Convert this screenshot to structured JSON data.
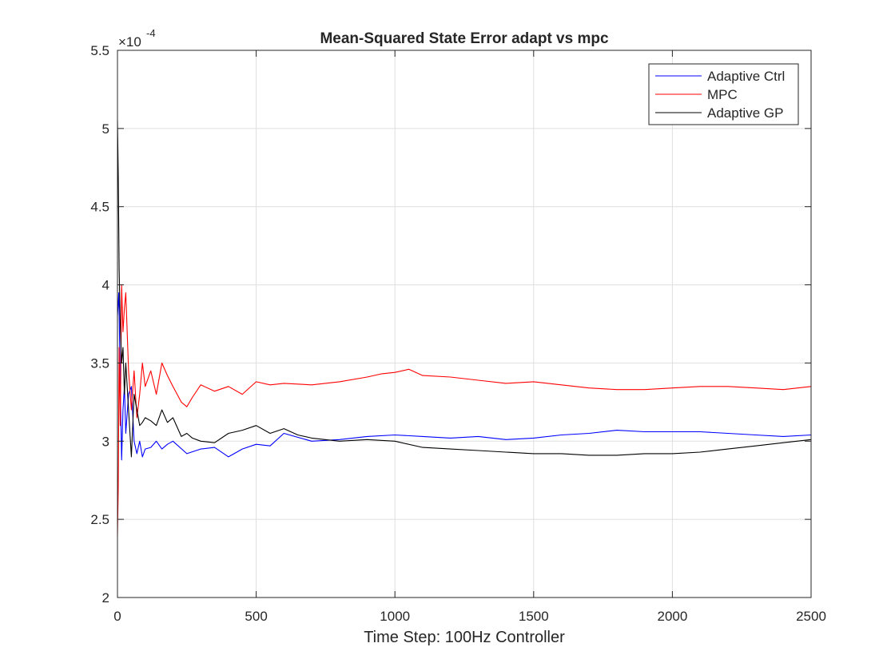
{
  "chart_data": {
    "type": "line",
    "title": "Mean-Squared State Error adapt vs mpc",
    "xlabel": "Time Step: 100Hz Controller",
    "ylabel": "",
    "xlim": [
      0,
      2500
    ],
    "ylim": [
      2.0,
      5.5
    ],
    "y_exponent_label": "×10",
    "y_exponent": "-4",
    "x_ticks": [
      0,
      500,
      1000,
      1500,
      2000,
      2500
    ],
    "x_tick_labels": [
      "0",
      "500",
      "1000",
      "1500",
      "2000",
      "2500"
    ],
    "y_ticks": [
      2.0,
      2.5,
      3.0,
      3.5,
      4.0,
      4.5,
      5.0,
      5.5
    ],
    "y_tick_labels": [
      "2",
      "2.5",
      "3",
      "3.5",
      "4",
      "4.5",
      "5",
      "5.5"
    ],
    "grid": true,
    "legend_position": "top-right",
    "series": [
      {
        "name": "Adaptive Ctrl",
        "color": "#0000ff",
        "x": [
          0,
          5,
          10,
          15,
          20,
          25,
          30,
          40,
          50,
          60,
          70,
          80,
          90,
          100,
          120,
          140,
          160,
          180,
          200,
          250,
          300,
          350,
          400,
          450,
          500,
          550,
          600,
          700,
          800,
          900,
          1000,
          1100,
          1200,
          1300,
          1400,
          1500,
          1600,
          1700,
          1800,
          1900,
          2000,
          2100,
          2200,
          2300,
          2400,
          2500
        ],
        "values": [
          3.8,
          3.95,
          3.35,
          2.88,
          3.2,
          3.35,
          3.05,
          3.3,
          3.35,
          3.0,
          2.92,
          3.0,
          2.9,
          2.95,
          2.96,
          3.0,
          2.95,
          2.98,
          3.0,
          2.92,
          2.95,
          2.96,
          2.9,
          2.95,
          2.98,
          2.97,
          3.05,
          3.0,
          3.01,
          3.03,
          3.04,
          3.03,
          3.02,
          3.03,
          3.01,
          3.02,
          3.04,
          3.05,
          3.07,
          3.06,
          3.06,
          3.06,
          3.05,
          3.04,
          3.03,
          3.04
        ]
      },
      {
        "name": "MPC",
        "color": "#ff0000",
        "x": [
          0,
          3,
          6,
          10,
          15,
          20,
          25,
          30,
          40,
          50,
          60,
          70,
          80,
          90,
          100,
          120,
          140,
          160,
          180,
          200,
          230,
          250,
          270,
          300,
          350,
          400,
          450,
          500,
          550,
          600,
          700,
          800,
          900,
          950,
          1000,
          1050,
          1100,
          1200,
          1300,
          1400,
          1500,
          1600,
          1700,
          1800,
          1900,
          2000,
          2100,
          2200,
          2300,
          2400,
          2500
        ],
        "values": [
          2.4,
          2.7,
          3.6,
          3.1,
          4.0,
          3.7,
          3.85,
          3.95,
          3.45,
          3.2,
          3.45,
          3.15,
          3.3,
          3.5,
          3.35,
          3.45,
          3.3,
          3.5,
          3.42,
          3.35,
          3.25,
          3.22,
          3.28,
          3.36,
          3.32,
          3.35,
          3.3,
          3.38,
          3.36,
          3.37,
          3.36,
          3.38,
          3.41,
          3.43,
          3.44,
          3.46,
          3.42,
          3.41,
          3.39,
          3.37,
          3.38,
          3.36,
          3.34,
          3.33,
          3.33,
          3.34,
          3.35,
          3.35,
          3.34,
          3.33,
          3.35
        ]
      },
      {
        "name": "Adaptive GP",
        "color": "#000000",
        "x": [
          0,
          3,
          6,
          10,
          15,
          20,
          25,
          30,
          40,
          50,
          60,
          70,
          80,
          90,
          100,
          120,
          140,
          160,
          180,
          200,
          230,
          250,
          270,
          300,
          350,
          400,
          450,
          500,
          550,
          600,
          650,
          700,
          800,
          900,
          1000,
          1100,
          1200,
          1300,
          1400,
          1500,
          1600,
          1700,
          1800,
          1900,
          2000,
          2100,
          2200,
          2300,
          2400,
          2500
        ],
        "values": [
          5.05,
          4.7,
          4.1,
          3.75,
          3.5,
          3.6,
          3.3,
          3.5,
          3.2,
          2.9,
          3.3,
          3.2,
          3.1,
          3.12,
          3.15,
          3.13,
          3.1,
          3.2,
          3.12,
          3.15,
          3.03,
          3.05,
          3.02,
          3.0,
          2.99,
          3.05,
          3.07,
          3.1,
          3.05,
          3.08,
          3.04,
          3.02,
          3.0,
          3.01,
          3.0,
          2.96,
          2.95,
          2.94,
          2.93,
          2.92,
          2.92,
          2.91,
          2.91,
          2.92,
          2.92,
          2.93,
          2.95,
          2.97,
          2.99,
          3.01
        ]
      }
    ]
  }
}
